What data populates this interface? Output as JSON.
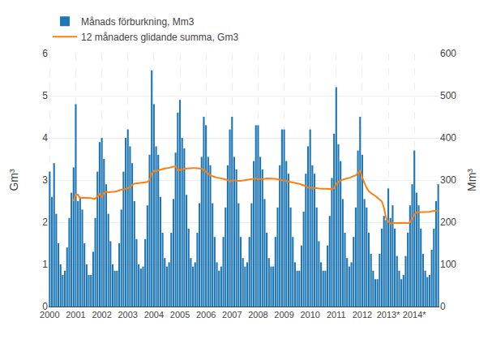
{
  "chart_data": {
    "type": "bar",
    "ylabel": "Gm³",
    "y2label": "Mm³",
    "categories": [
      "2000",
      null,
      null,
      null,
      null,
      null,
      null,
      null,
      null,
      null,
      null,
      null,
      "2001",
      null,
      null,
      null,
      null,
      null,
      null,
      null,
      null,
      null,
      null,
      null,
      "2002",
      null,
      null,
      null,
      null,
      null,
      null,
      null,
      null,
      null,
      null,
      null,
      "2003",
      null,
      null,
      null,
      null,
      null,
      null,
      null,
      null,
      null,
      null,
      null,
      "2004",
      null,
      null,
      null,
      null,
      null,
      null,
      null,
      null,
      null,
      null,
      null,
      "2005",
      null,
      null,
      null,
      null,
      null,
      null,
      null,
      null,
      null,
      null,
      null,
      "2006",
      null,
      null,
      null,
      null,
      null,
      null,
      null,
      null,
      null,
      null,
      null,
      "2007",
      null,
      null,
      null,
      null,
      null,
      null,
      null,
      null,
      null,
      null,
      null,
      "2008",
      null,
      null,
      null,
      null,
      null,
      null,
      null,
      null,
      null,
      null,
      null,
      "2009",
      null,
      null,
      null,
      null,
      null,
      null,
      null,
      null,
      null,
      null,
      null,
      "2010",
      null,
      null,
      null,
      null,
      null,
      null,
      null,
      null,
      null,
      null,
      null,
      "2011",
      null,
      null,
      null,
      null,
      null,
      null,
      null,
      null,
      null,
      null,
      null,
      "2012",
      null,
      null,
      null,
      null,
      null,
      null,
      null,
      null,
      null,
      null,
      null,
      "2013*",
      null,
      null,
      null,
      null,
      null,
      null,
      null,
      null,
      null,
      null,
      null,
      "2014*",
      null,
      null,
      null,
      null,
      null,
      null,
      null,
      null,
      null,
      null,
      null
    ],
    "series": [
      {
        "name": "Månads förburkning, Mm3",
        "type": "bar",
        "axis": "y2",
        "values": [
          320,
          260,
          340,
          220,
          150,
          100,
          75,
          85,
          140,
          210,
          270,
          330,
          480,
          250,
          260,
          230,
          150,
          100,
          75,
          75,
          130,
          210,
          320,
          390,
          400,
          350,
          290,
          220,
          155,
          100,
          85,
          85,
          150,
          230,
          320,
          400,
          420,
          380,
          340,
          250,
          160,
          100,
          90,
          95,
          160,
          240,
          360,
          560,
          480,
          380,
          360,
          260,
          175,
          115,
          95,
          105,
          175,
          255,
          365,
          460,
          490,
          400,
          375,
          265,
          185,
          115,
          95,
          105,
          175,
          245,
          355,
          450,
          430,
          355,
          335,
          245,
          165,
          105,
          85,
          95,
          165,
          235,
          335,
          420,
          450,
          355,
          325,
          245,
          165,
          115,
          95,
          105,
          165,
          245,
          345,
          430,
          430,
          355,
          325,
          255,
          175,
          115,
          95,
          95,
          165,
          235,
          335,
          420,
          420,
          345,
          315,
          235,
          165,
          105,
          85,
          85,
          145,
          225,
          315,
          380,
          420,
          335,
          315,
          235,
          155,
          105,
          85,
          85,
          145,
          215,
          305,
          410,
          520,
          385,
          345,
          255,
          175,
          115,
          95,
          105,
          165,
          235,
          370,
          450,
          360,
          255,
          235,
          175,
          125,
          85,
          65,
          65,
          125,
          185,
          215,
          205,
          280,
          210,
          240,
          185,
          120,
          85,
          65,
          75,
          120,
          175,
          240,
          290,
          370,
          270,
          240,
          185,
          125,
          85,
          70,
          75,
          135,
          185,
          250,
          290
        ]
      },
      {
        "name": "12 månaders glidande summa, Gm3",
        "type": "line",
        "values": [
          null,
          null,
          null,
          null,
          null,
          null,
          null,
          null,
          null,
          null,
          null,
          2.5,
          2.66,
          2.65,
          2.57,
          2.58,
          2.58,
          2.58,
          2.58,
          2.57,
          2.56,
          2.56,
          2.61,
          2.67,
          2.59,
          2.69,
          2.72,
          2.71,
          2.715,
          2.715,
          2.725,
          2.735,
          2.755,
          2.775,
          2.775,
          2.785,
          2.805,
          2.835,
          2.885,
          2.915,
          2.92,
          2.92,
          2.925,
          2.935,
          2.945,
          2.955,
          2.995,
          3.155,
          3.215,
          3.215,
          3.235,
          3.245,
          3.26,
          3.275,
          3.28,
          3.29,
          3.305,
          3.32,
          3.325,
          3.225,
          3.235,
          3.255,
          3.27,
          3.275,
          3.285,
          3.285,
          3.285,
          3.285,
          3.285,
          3.275,
          3.265,
          3.255,
          3.195,
          3.15,
          3.11,
          3.09,
          3.07,
          3.06,
          3.05,
          3.04,
          3.03,
          3.02,
          3.0,
          2.97,
          2.99,
          2.99,
          2.98,
          2.98,
          2.98,
          2.99,
          3.0,
          3.01,
          3.01,
          3.02,
          3.03,
          3.04,
          3.02,
          3.02,
          3.02,
          3.03,
          3.04,
          3.04,
          3.04,
          3.03,
          3.03,
          3.02,
          3.01,
          3.0,
          2.99,
          2.98,
          2.97,
          2.95,
          2.94,
          2.93,
          2.92,
          2.91,
          2.89,
          2.88,
          2.86,
          2.82,
          2.82,
          2.81,
          2.81,
          2.81,
          2.8,
          2.8,
          2.8,
          2.8,
          2.8,
          2.79,
          2.78,
          2.81,
          2.91,
          2.96,
          2.99,
          3.01,
          3.03,
          3.04,
          3.05,
          3.07,
          3.09,
          3.11,
          3.175,
          3.215,
          3.055,
          2.925,
          2.815,
          2.735,
          2.685,
          2.655,
          2.625,
          2.585,
          2.545,
          2.495,
          2.34,
          2.095,
          2.015,
          1.97,
          1.975,
          1.985,
          1.98,
          1.98,
          1.98,
          1.99,
          1.985,
          1.975,
          2.0,
          2.085,
          2.175,
          2.235,
          2.235,
          2.235,
          2.24,
          2.24,
          2.245,
          2.245,
          2.26,
          2.27,
          2.28,
          2.28
        ]
      }
    ],
    "ylim": [
      0,
      6
    ],
    "yticks": [
      0,
      1,
      2,
      3,
      4,
      5,
      6
    ],
    "y2lim": [
      0,
      600
    ],
    "y2ticks": [
      0,
      100,
      200,
      300,
      400,
      500,
      600
    ],
    "grid": true,
    "legend": "upper left"
  }
}
